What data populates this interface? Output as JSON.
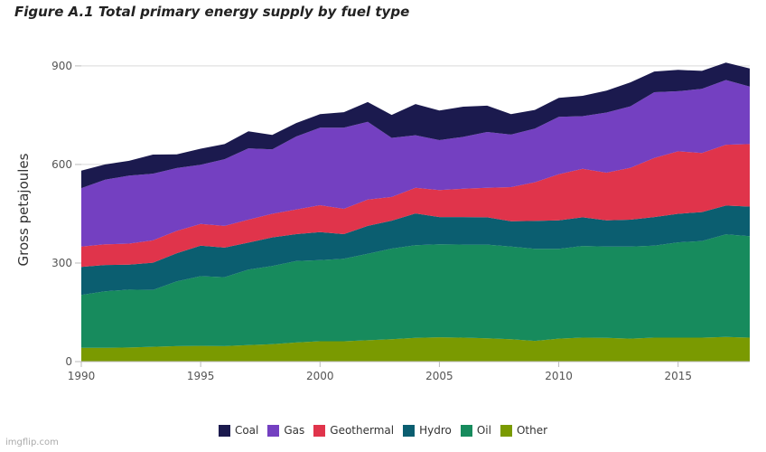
{
  "chart_data": {
    "type": "area",
    "stacked": true,
    "title": "Figure A.1 Total primary energy supply by fuel type",
    "xlabel": "",
    "ylabel": "Gross petajoules",
    "xlim": [
      1990,
      2018
    ],
    "ylim": [
      0,
      930
    ],
    "x_ticks": [
      1990,
      1995,
      2000,
      2005,
      2010,
      2015
    ],
    "y_ticks": [
      0,
      300,
      600,
      900
    ],
    "grid": "horizontal",
    "legend": "bottom",
    "x": [
      1990,
      1991,
      1992,
      1993,
      1994,
      1995,
      1996,
      1997,
      1998,
      1999,
      2000,
      2001,
      2002,
      2003,
      2004,
      2005,
      2006,
      2007,
      2008,
      2009,
      2010,
      2011,
      2012,
      2013,
      2014,
      2015,
      2016,
      2017,
      2018
    ],
    "series": [
      {
        "name": "Other",
        "color": "#7a9a01",
        "values": [
          42,
          42,
          43,
          45,
          47,
          48,
          47,
          50,
          53,
          58,
          62,
          62,
          65,
          68,
          72,
          74,
          73,
          71,
          68,
          63,
          70,
          73,
          72,
          70,
          73,
          73,
          73,
          75,
          73
        ]
      },
      {
        "name": "Oil",
        "color": "#178b5d",
        "values": [
          161,
          172,
          176,
          173,
          197,
          212,
          210,
          230,
          238,
          248,
          247,
          251,
          263,
          276,
          282,
          283,
          283,
          285,
          282,
          280,
          273,
          279,
          278,
          280,
          280,
          290,
          294,
          312,
          309
        ]
      },
      {
        "name": "Hydro",
        "color": "#0b5e70",
        "values": [
          85,
          80,
          76,
          83,
          86,
          93,
          90,
          82,
          87,
          82,
          85,
          75,
          85,
          85,
          97,
          83,
          84,
          83,
          77,
          85,
          87,
          87,
          80,
          82,
          87,
          87,
          88,
          88,
          90
        ]
      },
      {
        "name": "Geothermal",
        "color": "#e0344b",
        "values": [
          62,
          63,
          64,
          68,
          68,
          66,
          66,
          70,
          72,
          75,
          82,
          77,
          80,
          72,
          78,
          82,
          86,
          90,
          104,
          118,
          140,
          148,
          145,
          158,
          180,
          190,
          180,
          185,
          190
        ]
      },
      {
        "name": "Gas",
        "color": "#7440c1",
        "values": [
          178,
          197,
          207,
          203,
          191,
          180,
          203,
          217,
          196,
          222,
          236,
          247,
          237,
          180,
          160,
          152,
          158,
          170,
          160,
          163,
          175,
          160,
          183,
          187,
          200,
          183,
          195,
          197,
          175
        ]
      },
      {
        "name": "Coal",
        "color": "#1b1a4e",
        "values": [
          53,
          46,
          45,
          58,
          42,
          49,
          46,
          52,
          44,
          41,
          41,
          47,
          60,
          70,
          95,
          90,
          92,
          80,
          62,
          57,
          58,
          62,
          67,
          73,
          63,
          65,
          55,
          53,
          55
        ]
      }
    ]
  },
  "watermark": "imgflip.com"
}
